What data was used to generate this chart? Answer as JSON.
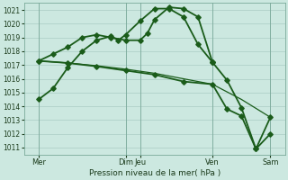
{
  "xlabel": "Pression niveau de la mer( hPa )",
  "bg_color": "#cce8e0",
  "grid_color": "#aaccC4",
  "line_color": "#1a5c1a",
  "ylim": [
    1010.5,
    1021.5
  ],
  "yticks": [
    1011,
    1012,
    1013,
    1014,
    1015,
    1016,
    1017,
    1018,
    1019,
    1020,
    1021
  ],
  "xlim": [
    -0.5,
    17.5
  ],
  "xtick_pos": [
    0.5,
    6.5,
    7.5,
    12.5,
    16.5
  ],
  "xtick_lab": [
    "Mer",
    "Dim",
    "Jeu",
    "Ven",
    "Sam"
  ],
  "vline_x": [
    0.5,
    6.5,
    7.5,
    12.5,
    16.5
  ],
  "s0_x": [
    0.5,
    1.5,
    2.5,
    3.5,
    4.5,
    5.5,
    6.0,
    6.5,
    7.5,
    8.5,
    9.5,
    10.5,
    11.5,
    12.5
  ],
  "s0_y": [
    1014.5,
    1015.3,
    1016.8,
    1018.0,
    1018.8,
    1019.1,
    1018.8,
    1019.2,
    1020.2,
    1021.1,
    1021.1,
    1020.5,
    1018.5,
    1017.2
  ],
  "s1_x": [
    0.5,
    1.5,
    2.5,
    3.5,
    4.5,
    5.5,
    6.5,
    7.5,
    8.0,
    8.5,
    9.5,
    10.5,
    11.5,
    12.5
  ],
  "s1_y": [
    1017.3,
    1017.8,
    1018.3,
    1019.0,
    1019.2,
    1019.0,
    1018.8,
    1018.8,
    1019.3,
    1020.3,
    1021.2,
    1021.1,
    1020.5,
    1017.2
  ],
  "s2_x": [
    0.5,
    2.5,
    4.5,
    6.5,
    8.5,
    10.5,
    12.5,
    14.5,
    16.5
  ],
  "s2_y": [
    1017.3,
    1017.15,
    1016.95,
    1016.7,
    1016.4,
    1016.0,
    1015.6,
    1014.5,
    1013.2
  ],
  "s3_x": [
    0.5,
    2.5,
    4.5,
    6.5,
    8.5,
    10.5,
    12.5,
    13.5,
    14.5,
    15.5,
    16.5
  ],
  "s3_y": [
    1017.3,
    1017.15,
    1016.9,
    1016.6,
    1016.3,
    1015.8,
    1015.6,
    1013.8,
    1013.3,
    1010.9,
    1012.0
  ],
  "s4_x": [
    12.5,
    13.5,
    14.5,
    15.5,
    16.5
  ],
  "s4_y": [
    1017.2,
    1015.9,
    1013.9,
    1010.9,
    1013.2
  ]
}
